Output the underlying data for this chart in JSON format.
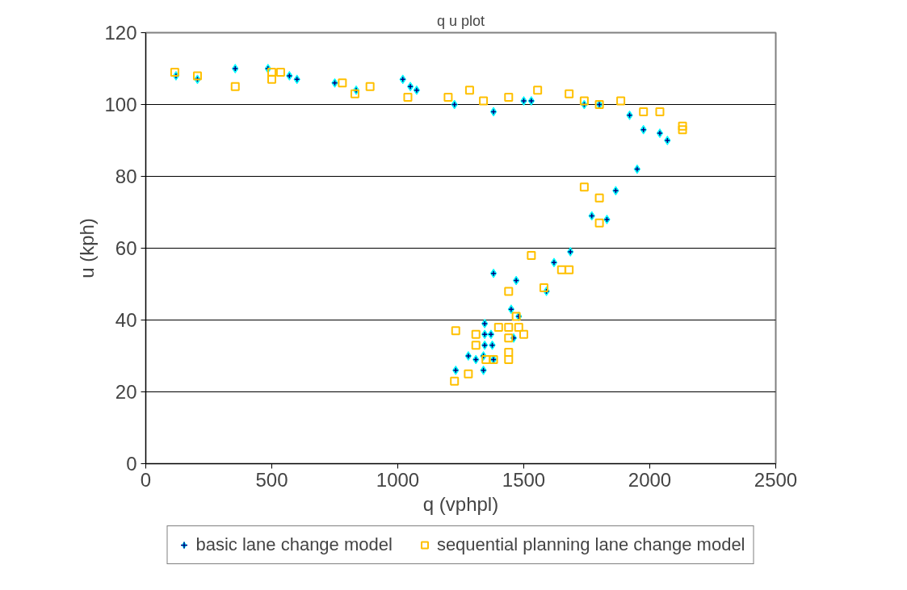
{
  "chart_data": {
    "type": "scatter",
    "title": "q u plot",
    "xlabel": "q (vphpl)",
    "ylabel": "u (kph)",
    "xlim": [
      0,
      2500
    ],
    "xticks": [
      0,
      500,
      1000,
      1500,
      2000,
      2500
    ],
    "ylim": [
      0,
      120
    ],
    "yticks": [
      0,
      20,
      40,
      60,
      80,
      100,
      120
    ],
    "grid": "y",
    "legend": "bottom",
    "series": [
      {
        "name": "basic lane change model",
        "color": "#00ffff",
        "marker": "diamond",
        "x": [
          120,
          205,
          355,
          485,
          570,
          600,
          750,
          835,
          1020,
          1050,
          1075,
          1225,
          1380,
          1500,
          1530,
          1740,
          1800,
          1920,
          1975,
          2040,
          2070,
          1950,
          1865,
          1770,
          1830,
          1685,
          1620,
          1380,
          1470,
          1590,
          1230,
          1280,
          1310,
          1340,
          1340,
          1345,
          1345,
          1345,
          1370,
          1375,
          1380,
          1450,
          1480,
          1460
        ],
        "values": [
          108,
          107,
          110,
          110,
          108,
          107,
          106,
          104,
          107,
          105,
          104,
          100,
          98,
          101,
          101,
          100,
          100,
          97,
          93,
          92,
          90,
          82,
          76,
          69,
          68,
          59,
          56,
          53,
          51,
          48,
          26,
          30,
          29,
          26,
          30,
          33,
          36,
          39,
          36,
          33,
          29,
          43,
          41,
          35
        ]
      },
      {
        "name": "sequential planning lane change model",
        "color": "#ffc000",
        "marker": "square",
        "x": [
          115,
          205,
          355,
          500,
          500,
          535,
          780,
          830,
          890,
          1040,
          1200,
          1285,
          1340,
          1440,
          1555,
          1680,
          1740,
          1800,
          1885,
          1975,
          2040,
          2130,
          2130,
          1740,
          1800,
          1800,
          1530,
          1650,
          1680,
          1440,
          1580,
          1230,
          1310,
          1310,
          1280,
          1225,
          1350,
          1380,
          1400,
          1440,
          1440,
          1440,
          1440,
          1470,
          1500,
          1480
        ],
        "values": [
          109,
          108,
          105,
          107,
          109,
          109,
          106,
          103,
          105,
          102,
          102,
          104,
          101,
          102,
          104,
          103,
          101,
          100,
          101,
          98,
          98,
          94,
          93,
          77,
          74,
          67,
          58,
          54,
          54,
          48,
          49,
          37,
          36,
          33,
          25,
          23,
          29,
          29,
          38,
          38,
          35,
          31,
          29,
          41,
          36,
          38
        ]
      }
    ]
  }
}
